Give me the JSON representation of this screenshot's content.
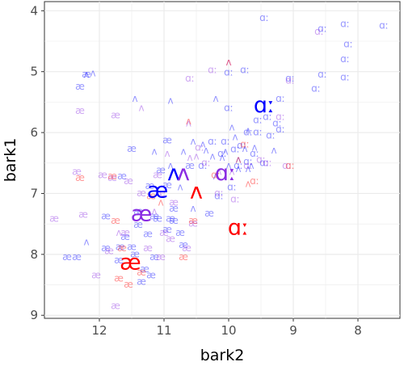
{
  "chart_data": {
    "type": "scatter",
    "xlabel": "bark2",
    "ylabel": "bark1",
    "x_reversed": true,
    "y_reversed": true,
    "xlim": [
      12.85,
      7.35
    ],
    "ylim": [
      3.85,
      9.05
    ],
    "x_ticks": [
      12,
      11,
      10,
      9,
      8
    ],
    "y_ticks": [
      4,
      5,
      6,
      7,
      8,
      9
    ],
    "x_tick_labels": [
      "12",
      "11",
      "10",
      "9",
      "8"
    ],
    "y_tick_labels": [
      "4",
      "5",
      "6",
      "7",
      "8",
      "9"
    ],
    "grid": true,
    "legend": "none",
    "colors": {
      "blue": "#0000ff",
      "purple": "#8a2be2",
      "red": "#ff0000",
      "panel": "#ffffff",
      "grid": "#ebebeb"
    },
    "series": [
      {
        "symbol": "æ",
        "color": "#0000ff",
        "centroid": {
          "x": 11.1,
          "y": 6.97
        },
        "tokens": [
          [
            12.2,
            5.05
          ],
          [
            12.3,
            5.25
          ],
          [
            11.5,
            6.27
          ],
          [
            10.95,
            6.13
          ],
          [
            11.65,
            6.72
          ],
          [
            11.05,
            6.62
          ],
          [
            11.22,
            6.88
          ],
          [
            11.9,
            7.38
          ],
          [
            11.4,
            7.3
          ],
          [
            11.15,
            7.38
          ],
          [
            10.9,
            7.42
          ],
          [
            11.6,
            7.72
          ],
          [
            10.75,
            7.65
          ],
          [
            10.3,
            7.33
          ],
          [
            11.5,
            7.88
          ],
          [
            11.15,
            8.05
          ],
          [
            11.3,
            8.25
          ],
          [
            11.35,
            8.45
          ],
          [
            11.4,
            7.52
          ],
          [
            10.95,
            7.6
          ],
          [
            12.35,
            8.05
          ],
          [
            11.9,
            7.9
          ],
          [
            11.68,
            7.88
          ],
          [
            11.45,
            8.0
          ],
          [
            11.25,
            7.67
          ],
          [
            10.85,
            7.45
          ],
          [
            10.95,
            6.87
          ],
          [
            10.85,
            7.25
          ],
          [
            10.6,
            6.55
          ],
          [
            11.1,
            7.42
          ],
          [
            12.5,
            8.05
          ],
          [
            11.2,
            8.35
          ],
          [
            11.7,
            8.1
          ],
          [
            10.7,
            7.85
          ]
        ]
      },
      {
        "symbol": "æ",
        "color": "#8a2be2",
        "centroid": {
          "x": 11.35,
          "y": 7.35
        },
        "tokens": [
          [
            12.3,
            5.65
          ],
          [
            11.75,
            5.72
          ],
          [
            12.35,
            6.65
          ],
          [
            11.95,
            6.7
          ],
          [
            11.8,
            6.75
          ],
          [
            11.05,
            7.0
          ],
          [
            12.25,
            7.35
          ],
          [
            11.85,
            7.95
          ],
          [
            11.6,
            7.65
          ],
          [
            10.9,
            7.75
          ],
          [
            10.55,
            7.5
          ],
          [
            11.05,
            8.05
          ],
          [
            10.65,
            7.9
          ],
          [
            11.75,
            8.85
          ],
          [
            10.85,
            7.15
          ],
          [
            11.35,
            7.0
          ],
          [
            11.0,
            7.65
          ],
          [
            12.7,
            7.42
          ],
          [
            11.55,
            6.8
          ],
          [
            11.1,
            6.7
          ],
          [
            12.05,
            8.35
          ],
          [
            11.25,
            7.9
          ]
        ]
      },
      {
        "symbol": "æ",
        "color": "#ff0000",
        "centroid": {
          "x": 11.52,
          "y": 8.15
        },
        "tokens": [
          [
            11.8,
            6.72
          ],
          [
            11.75,
            7.45
          ],
          [
            11.35,
            8.3
          ],
          [
            11.2,
            7.05
          ],
          [
            11.7,
            8.4
          ],
          [
            11.55,
            8.5
          ],
          [
            10.7,
            8.05
          ],
          [
            12.3,
            6.75
          ],
          [
            10.55,
            7.45
          ],
          [
            11.65,
            7.9
          ]
        ]
      },
      {
        "symbol": "ʌ",
        "color": "#0000ff",
        "centroid": {
          "x": 10.85,
          "y": 6.68
        },
        "tokens": [
          [
            12.1,
            5.03
          ],
          [
            12.2,
            5.05
          ],
          [
            11.45,
            5.45
          ],
          [
            10.9,
            5.48
          ],
          [
            10.2,
            5.45
          ],
          [
            11.15,
            6.32
          ],
          [
            10.55,
            6.15
          ],
          [
            10.35,
            6.3
          ],
          [
            10.1,
            6.42
          ],
          [
            9.95,
            5.92
          ],
          [
            9.9,
            6.08
          ],
          [
            9.75,
            6.27
          ],
          [
            9.65,
            6.55
          ],
          [
            10.7,
            6.32
          ],
          [
            10.0,
            6.55
          ],
          [
            10.75,
            6.9
          ],
          [
            10.2,
            6.72
          ],
          [
            9.85,
            6.6
          ],
          [
            9.6,
            6.25
          ],
          [
            9.3,
            6.3
          ],
          [
            10.4,
            6.2
          ],
          [
            9.7,
            5.97
          ],
          [
            12.2,
            7.8
          ],
          [
            10.55,
            7.25
          ],
          [
            10.9,
            6.55
          ],
          [
            10.25,
            6.4
          ],
          [
            9.85,
            6.45
          ],
          [
            10.05,
            6.32
          ],
          [
            9.7,
            6.6
          ]
        ]
      },
      {
        "symbol": "ʌ",
        "color": "#8a2be2",
        "centroid": {
          "x": 10.7,
          "y": 6.68
        },
        "tokens": [
          [
            11.35,
            5.6
          ],
          [
            10.0,
            4.85
          ],
          [
            10.62,
            5.85
          ],
          [
            10.95,
            6.35
          ],
          [
            10.5,
            6.4
          ],
          [
            9.95,
            6.65
          ],
          [
            10.15,
            6.65
          ],
          [
            10.6,
            6.42
          ],
          [
            11.7,
            7.65
          ],
          [
            11.15,
            7.3
          ]
        ]
      },
      {
        "symbol": "ʌ",
        "color": "#ff0000",
        "centroid": {
          "x": 10.5,
          "y": 6.98
        },
        "tokens": [
          [
            10.0,
            4.85
          ],
          [
            10.62,
            5.82
          ],
          [
            9.85,
            6.45
          ],
          [
            11.05,
            7.15
          ],
          [
            9.7,
            6.85
          ]
        ]
      },
      {
        "symbol": "ɑː",
        "color": "#0000ff",
        "centroid": {
          "x": 9.45,
          "y": 5.57
        },
        "tokens": [
          [
            9.45,
            4.12
          ],
          [
            8.55,
            4.3
          ],
          [
            8.2,
            4.22
          ],
          [
            7.6,
            4.25
          ],
          [
            8.15,
            4.55
          ],
          [
            8.2,
            4.8
          ],
          [
            9.75,
            4.98
          ],
          [
            8.55,
            5.05
          ],
          [
            8.2,
            5.1
          ],
          [
            9.05,
            5.12
          ],
          [
            10.0,
            5.02
          ],
          [
            9.2,
            5.45
          ],
          [
            8.65,
            5.28
          ],
          [
            9.4,
            5.75
          ],
          [
            9.25,
            5.85
          ],
          [
            10.0,
            5.6
          ],
          [
            9.55,
            5.8
          ],
          [
            9.7,
            6.0
          ],
          [
            10.05,
            6.15
          ],
          [
            9.35,
            6.05
          ],
          [
            9.8,
            6.22
          ],
          [
            10.1,
            6.35
          ],
          [
            9.6,
            6.35
          ],
          [
            9.45,
            6.5
          ],
          [
            9.85,
            6.55
          ],
          [
            10.4,
            6.55
          ],
          [
            9.95,
            6.9
          ],
          [
            10.15,
            7.05
          ],
          [
            9.2,
            5.95
          ],
          [
            9.55,
            6.0
          ],
          [
            10.25,
            6.15
          ],
          [
            9.7,
            6.48
          ],
          [
            9.9,
            6.28
          ]
        ]
      },
      {
        "symbol": "ɑː",
        "color": "#8a2be2",
        "centroid": {
          "x": 10.05,
          "y": 6.68
        },
        "tokens": [
          [
            10.25,
            4.98
          ],
          [
            10.6,
            5.12
          ],
          [
            9.05,
            5.15
          ],
          [
            8.6,
            4.35
          ],
          [
            9.2,
            5.75
          ],
          [
            9.4,
            6.5
          ],
          [
            9.7,
            6.55
          ],
          [
            10.45,
            6.25
          ],
          [
            10.35,
            6.5
          ],
          [
            9.1,
            6.55
          ],
          [
            9.9,
            7.1
          ],
          [
            10.15,
            7.0
          ],
          [
            9.5,
            6.45
          ]
        ]
      },
      {
        "symbol": "ɑː",
        "color": "#ff0000",
        "centroid": {
          "x": 9.85,
          "y": 7.58
        },
        "tokens": [
          [
            9.05,
            6.55
          ],
          [
            9.75,
            6.2
          ],
          [
            10.2,
            6.7
          ],
          [
            9.6,
            6.8
          ]
        ]
      }
    ]
  }
}
